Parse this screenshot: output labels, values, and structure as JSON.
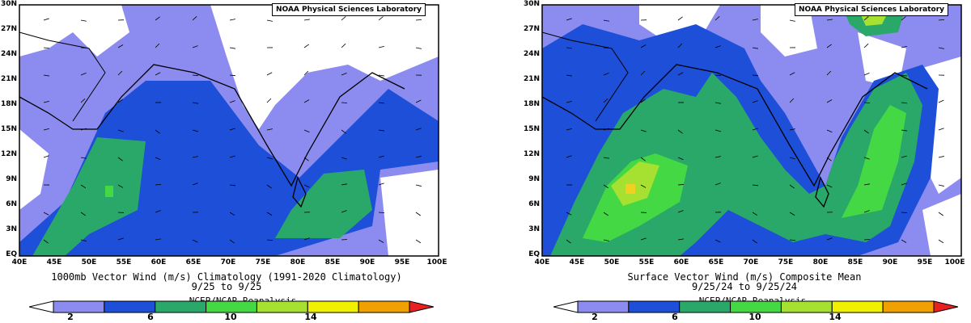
{
  "credit": "NOAA Physical Sciences Laboratory",
  "lat_labels": [
    "30N",
    "27N",
    "24N",
    "21N",
    "18N",
    "15N",
    "12N",
    "9N",
    "6N",
    "3N",
    "EQ"
  ],
  "lon_labels": [
    "40E",
    "45E",
    "50E",
    "55E",
    "60E",
    "65E",
    "70E",
    "75E",
    "80E",
    "85E",
    "90E",
    "95E",
    "100E"
  ],
  "colorbar": {
    "labels": [
      "2",
      "6",
      "10",
      "14"
    ],
    "colors": [
      "#ffffff",
      "#8c8cf0",
      "#1e4fd8",
      "#2aa86a",
      "#44d844",
      "#a6e030",
      "#f0f000",
      "#f0a000",
      "#e82020"
    ]
  },
  "reanalysis": "NCEP/NCAR Reanalysis",
  "left": {
    "caption1": "1000mb Vector Wind (m/s) Climatology (1991-2020 Climatology)",
    "caption2": "9/25  to 9/25"
  },
  "right": {
    "caption1": "Surface Vector Wind (m/s) Composite Mean",
    "caption2": "9/25/24  to 9/25/24"
  }
}
